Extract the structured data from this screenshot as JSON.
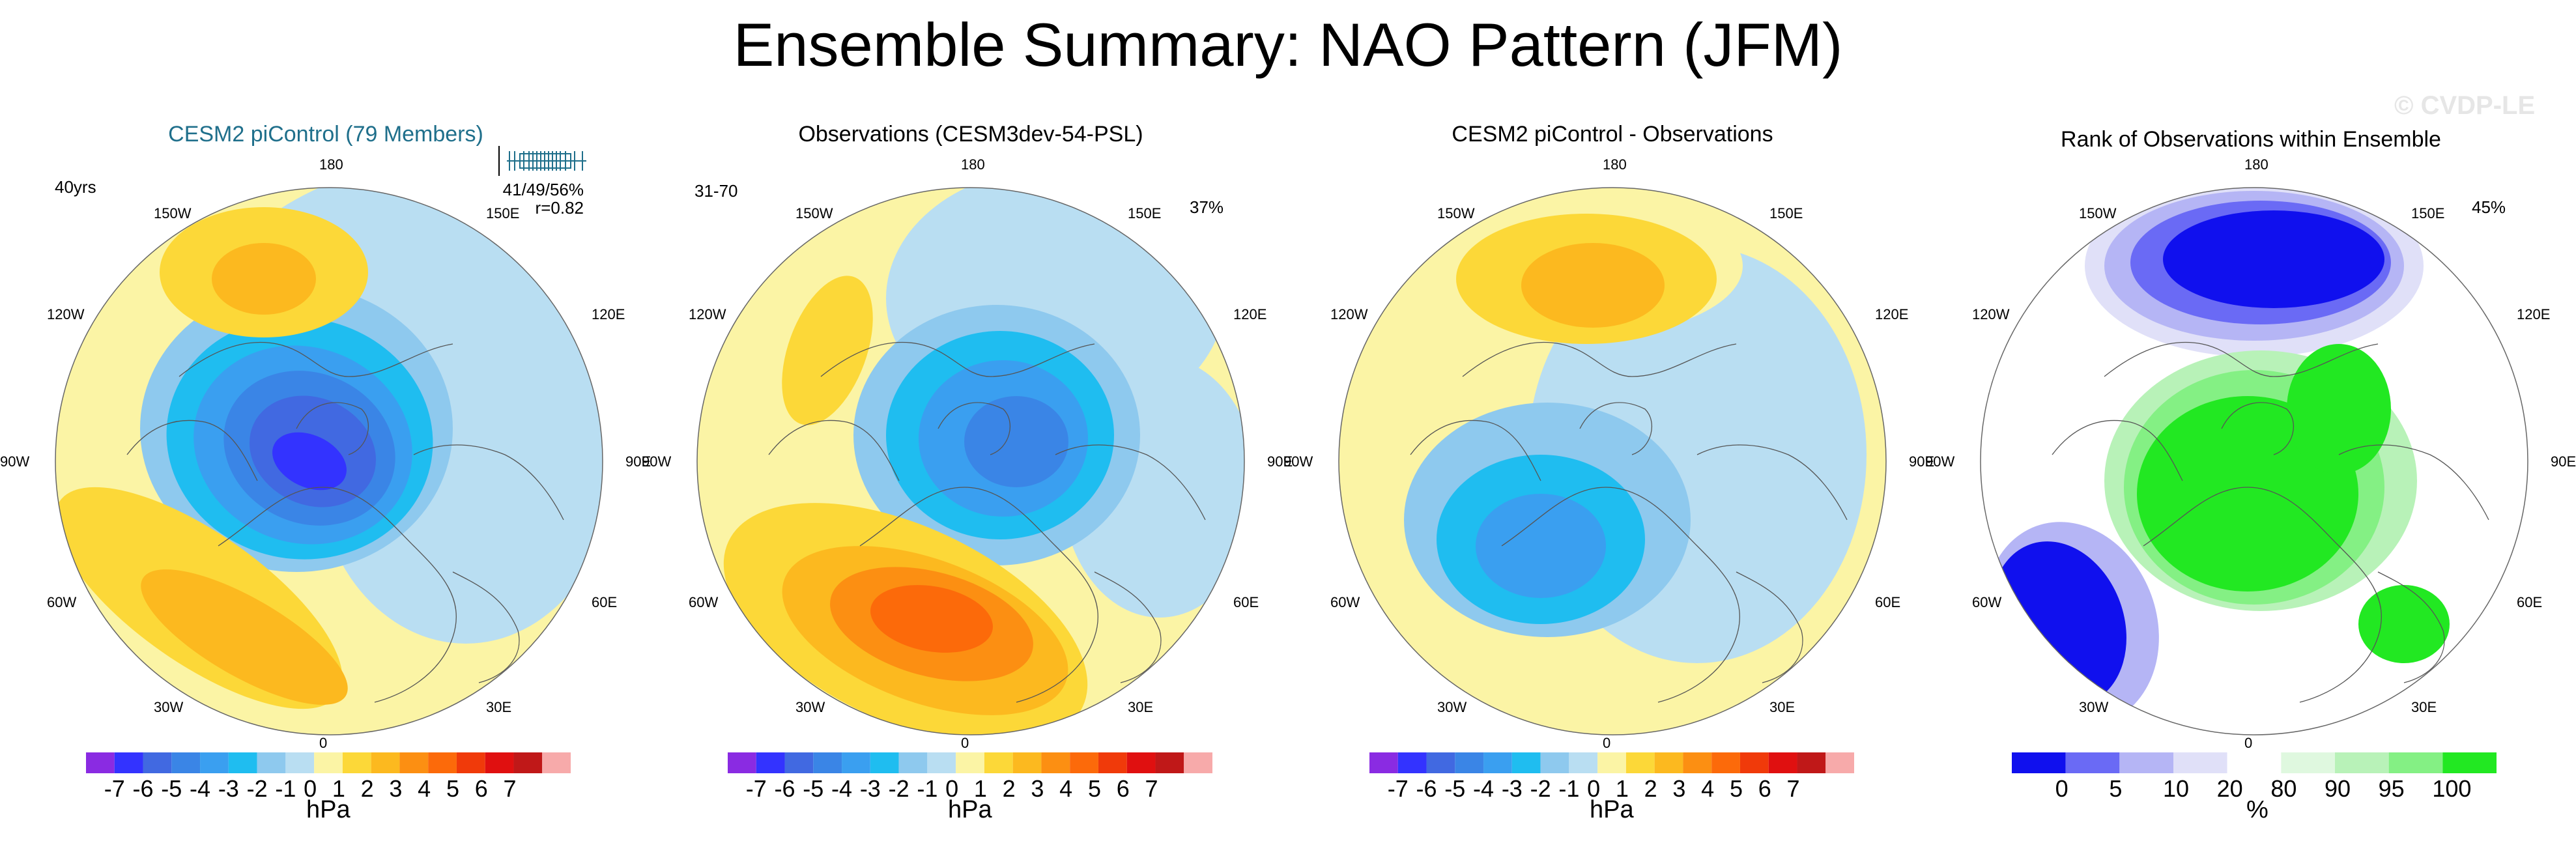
{
  "title": "Ensemble Summary: NAO Pattern (JFM)",
  "watermark": "© CVDP-LE",
  "panels": [
    {
      "title": "CESM2 piControl (79 Members)",
      "corner_left": "40yrs",
      "stats_line1": "41/49/56%",
      "stats_line2": "r=0.82"
    },
    {
      "title": "Observations (CESM3dev-54-PSL)",
      "corner_left": "31-70",
      "corner_right": "37%"
    },
    {
      "title": "CESM2 piControl - Observations"
    },
    {
      "title": "Rank of Observations within Ensemble",
      "corner_right": "45%"
    }
  ],
  "lon_labels": {
    "n": "180",
    "ne": "150E",
    "e1": "120E",
    "e": "90E",
    "se1": "60E",
    "se": "30E",
    "s": "0",
    "sw": "30W",
    "sw1": "60W",
    "w": "90W",
    "nw1": "120W",
    "nw": "150W"
  },
  "colorbars": {
    "hpa": {
      "unit": "hPa",
      "labels": [
        "-7",
        "-6",
        "-5",
        "-4",
        "-3",
        "-2",
        "-1",
        "0",
        "1",
        "2",
        "3",
        "4",
        "5",
        "6",
        "7"
      ],
      "colors": [
        "#8a2be2",
        "#3333ff",
        "#4169e1",
        "#3a85e6",
        "#3a9ff0",
        "#1fbdf0",
        "#8ec9ee",
        "#b9def2",
        "#fbf4a5",
        "#fcd838",
        "#fcb91f",
        "#fc8f12",
        "#fc6a0a",
        "#f03a0a",
        "#e01010",
        "#c01818",
        "#f7aaaa"
      ]
    },
    "rank": {
      "unit": "%",
      "labels": [
        "0",
        "5",
        "10",
        "20",
        "80",
        "90",
        "95",
        "100"
      ],
      "colors": [
        "#1010ee",
        "#6a6af5",
        "#b5b5f5",
        "#e0e0f8",
        "#ffffff",
        "#dff8df",
        "#b8f2b8",
        "#84f084",
        "#22e822"
      ]
    }
  },
  "chart_data": [
    {
      "type": "heatmap",
      "title": "CESM2 piControl (79 Members)",
      "projection": "north polar stereographic",
      "variable": "SLP NAO pattern",
      "units": "hPa",
      "range": [
        -7,
        7
      ],
      "features": [
        {
          "kind": "low",
          "center": "Arctic / Greenland",
          "min_value": -6
        },
        {
          "kind": "high",
          "center": "North Pacific",
          "max_value": 3
        },
        {
          "kind": "high",
          "center": "Central Atlantic",
          "max_value": 2
        }
      ],
      "ensemble_summary": {
        "percentiles": "41/49/56%",
        "pattern_correlation": 0.82
      }
    },
    {
      "type": "heatmap",
      "title": "Observations (CESM3dev-54-PSL)",
      "projection": "north polar stereographic",
      "variable": "SLP NAO pattern",
      "units": "hPa",
      "range": [
        -7,
        7
      ],
      "features": [
        {
          "kind": "low",
          "center": "Arctic / Iceland",
          "min_value": -4
        },
        {
          "kind": "high",
          "center": "Azores / Central Atlantic",
          "max_value": 5
        }
      ],
      "period": "31-70",
      "variance_explained": "37%"
    },
    {
      "type": "heatmap",
      "title": "CESM2 piControl - Observations",
      "projection": "north polar stereographic",
      "variable": "SLP difference",
      "units": "hPa",
      "range": [
        -7,
        7
      ],
      "features": [
        {
          "kind": "high",
          "center": "North Pacific",
          "max_value": 3
        },
        {
          "kind": "low",
          "center": "Greenland",
          "min_value": -3
        }
      ]
    },
    {
      "type": "heatmap",
      "title": "Rank of Observations within Ensemble",
      "projection": "north polar stereographic",
      "units": "%",
      "levels": [
        0,
        5,
        10,
        20,
        80,
        90,
        95,
        100
      ],
      "features": [
        {
          "kind": "low rank",
          "region": "North Pacific / Bering",
          "rank": "0-5"
        },
        {
          "kind": "low rank",
          "region": "Central Atlantic",
          "rank": "0-5"
        },
        {
          "kind": "high rank",
          "region": "Arctic / Greenland / Europe",
          "rank": "95-100"
        }
      ],
      "summary": "45%"
    }
  ]
}
